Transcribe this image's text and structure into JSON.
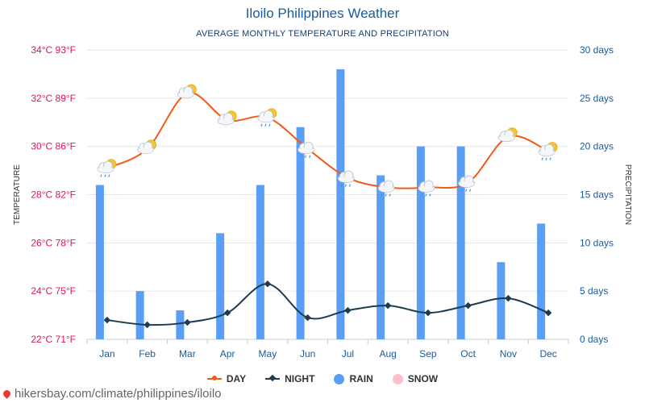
{
  "header": {
    "title": "Iloilo Philippines Weather",
    "subtitle": "AVERAGE MONTHLY TEMPERATURE AND PRECIPITATION"
  },
  "legend": {
    "day": "DAY",
    "night": "NIGHT",
    "rain": "RAIN",
    "snow": "SNOW"
  },
  "footer": {
    "source": "hikersbay.com/climate/philippines/iloilo"
  },
  "colors": {
    "day": "#f05a1a",
    "night": "#1d3c4d",
    "rain": "#5b9ef5",
    "snow": "#ffc0cb",
    "left_axis": "#e0145a",
    "right_axis": "#1a5a9e",
    "grid": "#e6e6e6"
  },
  "chart_data": {
    "type": "line",
    "categories": [
      "Jan",
      "Feb",
      "Mar",
      "Apr",
      "May",
      "Jun",
      "Jul",
      "Aug",
      "Sep",
      "Oct",
      "Nov",
      "Dec"
    ],
    "left_axis": {
      "label": "TEMPERATURE",
      "ylim": [
        22,
        34
      ],
      "ticks": [
        {
          "value": 22,
          "label": "22°C 71°F"
        },
        {
          "value": 24,
          "label": "24°C 75°F"
        },
        {
          "value": 26,
          "label": "26°C 78°F"
        },
        {
          "value": 28,
          "label": "28°C 82°F"
        },
        {
          "value": 30,
          "label": "30°C 86°F"
        },
        {
          "value": 32,
          "label": "32°C 89°F"
        },
        {
          "value": 34,
          "label": "34°C 93°F"
        }
      ]
    },
    "right_axis": {
      "label": "PRECIPITATION",
      "ylim": [
        0,
        30
      ],
      "ticks": [
        {
          "value": 0,
          "label": "0 days"
        },
        {
          "value": 5,
          "label": "5 days"
        },
        {
          "value": 10,
          "label": "10 days"
        },
        {
          "value": 15,
          "label": "15 days"
        },
        {
          "value": 20,
          "label": "20 days"
        },
        {
          "value": 25,
          "label": "25 days"
        },
        {
          "value": 30,
          "label": "30 days"
        }
      ]
    },
    "series": [
      {
        "name": "DAY",
        "axis": "left",
        "values": [
          29.1,
          29.9,
          32.2,
          31.1,
          31.2,
          29.9,
          28.7,
          28.3,
          28.3,
          28.5,
          30.4,
          29.8
        ]
      },
      {
        "name": "NIGHT",
        "axis": "left",
        "values": [
          22.8,
          22.6,
          22.7,
          23.1,
          24.3,
          22.9,
          23.2,
          23.4,
          23.1,
          23.4,
          23.7,
          23.1
        ]
      },
      {
        "name": "RAIN",
        "axis": "right",
        "type": "bar",
        "values": [
          16,
          5,
          3,
          11,
          16,
          22,
          28,
          17,
          20,
          20,
          8,
          12
        ]
      }
    ],
    "weather_icons": [
      "partly-cloudy-rain-icon",
      "partly-cloudy-icon",
      "partly-cloudy-icon",
      "partly-cloudy-icon",
      "partly-cloudy-rain-icon",
      "cloud-rain-icon",
      "cloud-rain-icon",
      "cloud-rain-icon",
      "cloud-rain-icon",
      "cloud-rain-icon",
      "partly-cloudy-icon",
      "partly-cloudy-rain-icon"
    ]
  }
}
